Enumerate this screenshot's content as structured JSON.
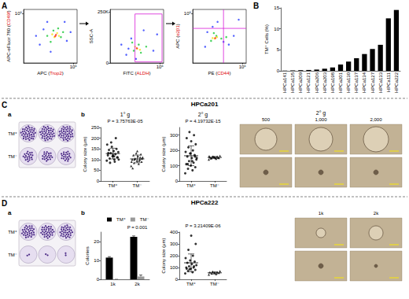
{
  "chart_data": [
    {
      "panel": "A",
      "type": "scatter",
      "x_label": "APC (Trop2)",
      "y_label": "APC-eFluor 780 (CD49f)",
      "log": true,
      "xlim": [
        10,
        200000
      ],
      "ylim": [
        10,
        200000
      ],
      "xticks": [
        {
          "value": 100000,
          "label": "10⁵"
        }
      ],
      "yticks": [
        {
          "value": 100000,
          "label": "10⁵"
        }
      ],
      "grid": false,
      "series": [
        {
          "color": "#2b3cff",
          "points": [
            [
              200,
              300
            ],
            [
              800,
              20000
            ],
            [
              30000,
              600
            ],
            [
              60000,
              3000
            ],
            [
              1500,
              80
            ],
            [
              400,
              5000
            ],
            [
              20000,
              20000
            ],
            [
              100,
              1500
            ]
          ]
        },
        {
          "color": "#19c837",
          "points": [
            [
              1500,
              500
            ],
            [
              2500,
              4000
            ],
            [
              10000,
              1200
            ],
            [
              6000,
              6000
            ],
            [
              800,
              1500
            ],
            [
              15000,
              3000
            ]
          ]
        },
        {
          "color": "#f3e21b",
          "points": [
            [
              3000,
              1200
            ],
            [
              5000,
              2500
            ],
            [
              2000,
              2000
            ],
            [
              7000,
              1500
            ]
          ]
        },
        {
          "color": "#ff2a1a",
          "points": [
            [
              4000,
              1800
            ],
            [
              3500,
              1400
            ]
          ]
        }
      ]
    },
    {
      "type": "scatter",
      "x_label": "FITC (ALDH)",
      "y_label": "SSC-A",
      "log": "x",
      "xlim": [
        10,
        200000
      ],
      "ylim": [
        0,
        262144
      ],
      "xticks": [
        {
          "value": 100000,
          "label": "10⁵"
        }
      ],
      "yticks": [
        0,
        {
          "value": 250000,
          "label": "250K"
        }
      ],
      "grid": false,
      "gate": {
        "x": [
          1000,
          150000
        ],
        "y": [
          5000,
          240000
        ],
        "color": "#d81bd8"
      },
      "series": [
        {
          "color": "#2b3cff",
          "points": [
            [
              200,
              40000
            ],
            [
              500,
              120000
            ],
            [
              30000,
              60000
            ],
            [
              80,
              90000
            ],
            [
              5000,
              160000
            ],
            [
              60000,
              140000
            ],
            [
              1200,
              20000
            ],
            [
              300,
              70000
            ]
          ]
        },
        {
          "color": "#19c837",
          "points": [
            [
              800,
              60000
            ],
            [
              2000,
              90000
            ],
            [
              3000,
              50000
            ],
            [
              600,
              100000
            ],
            [
              8000,
              80000
            ]
          ]
        },
        {
          "color": "#f3e21b",
          "points": [
            [
              1500,
              70000
            ],
            [
              1000,
              80000
            ],
            [
              2500,
              65000
            ]
          ]
        },
        {
          "color": "#ff2a1a",
          "points": [
            [
              1400,
              72000
            ]
          ]
        }
      ]
    },
    {
      "type": "scatter",
      "x_label": "PE (CD44)",
      "y_label": "APC (α2β1)",
      "log": true,
      "xlim": [
        10,
        200000
      ],
      "ylim": [
        10,
        200000
      ],
      "xticks": [
        {
          "value": 100000,
          "label": "10⁵"
        }
      ],
      "yticks": [
        {
          "value": 100000,
          "label": "10⁵"
        }
      ],
      "grid": false,
      "quadrant": {
        "x": 3000,
        "y": 6000,
        "color": "#d81bd8"
      },
      "series": [
        {
          "color": "#2b3cff",
          "points": [
            [
              100,
              200
            ],
            [
              3000,
              500
            ],
            [
              20000,
              1500
            ],
            [
              400,
              8000
            ],
            [
              50000,
              30000
            ],
            [
              150,
              3000
            ],
            [
              8000,
              300
            ],
            [
              1000,
              20000
            ]
          ]
        },
        {
          "color": "#19c837",
          "points": [
            [
              300,
              600
            ],
            [
              800,
              1500
            ],
            [
              2000,
              900
            ],
            [
              500,
              2500
            ],
            [
              5000,
              1200
            ]
          ]
        },
        {
          "color": "#f3e21b",
          "points": [
            [
              600,
              900
            ],
            [
              900,
              1200
            ],
            [
              400,
              1000
            ]
          ]
        },
        {
          "color": "#ff2a1a",
          "points": [
            [
              650,
              1000
            ]
          ]
        }
      ]
    },
    {
      "panel": "B",
      "type": "bar",
      "y_label": "TM⁺ Cells (%)",
      "categories": [
        "HPCa141",
        "HPCa135",
        "HPCa209",
        "HPCa121",
        "HPCa206",
        "HPCa203",
        "HPCa198",
        "HPCa201",
        "HPCa130",
        "HPCa137",
        "HPCa134",
        "HPCa127",
        "HPCa133",
        "HPCa111",
        "HPCa222"
      ],
      "values": [
        0.05,
        0.1,
        0.15,
        0.2,
        0.3,
        0.5,
        0.8,
        1.5,
        2.2,
        3.0,
        4.0,
        5.2,
        6.2,
        12.5,
        14.5
      ],
      "color": "#000000",
      "ylim": [
        0,
        15
      ],
      "yticks": [
        0,
        5,
        10,
        15
      ],
      "grid": false
    },
    {
      "type": "scatter",
      "title": "1° g",
      "annotation": "P = 3.75763E-05",
      "y_label": "Colony size (μm)",
      "categories": [
        "TM⁺",
        "TM⁻"
      ],
      "ylim": [
        0,
        250
      ],
      "yticks": [
        0,
        50,
        100,
        150,
        200,
        250
      ],
      "grid": false,
      "groups": [
        {
          "marker": "circle",
          "color": "#000000",
          "values": [
            95,
            100,
            105,
            110,
            115,
            120,
            125,
            130,
            135,
            140,
            145,
            150,
            160,
            170,
            90,
            85,
            110,
            120,
            130,
            200,
            180,
            100,
            115
          ],
          "mean": 128,
          "error": 25
        },
        {
          "marker": "triangle",
          "color": "#000000",
          "values": [
            70,
            80,
            85,
            90,
            95,
            100,
            100,
            105,
            110,
            115,
            120,
            125,
            130,
            90,
            95,
            100,
            105,
            140,
            60,
            110
          ],
          "mean": 103,
          "error": 18
        }
      ]
    },
    {
      "type": "scatter",
      "title": "2° g",
      "annotation": "P = 4.19732E-15",
      "y_label": "Colony size (μm)",
      "categories": [
        "TM⁺",
        "TM⁻"
      ],
      "ylim": [
        0,
        350
      ],
      "yticks": [
        0,
        100,
        200,
        300
      ],
      "grid": false,
      "groups": [
        {
          "marker": "circle",
          "color": "#000000",
          "values": [
            50,
            70,
            80,
            90,
            100,
            110,
            120,
            130,
            140,
            150,
            160,
            170,
            180,
            190,
            200,
            220,
            240,
            260,
            280,
            300,
            320,
            150,
            130,
            110,
            160,
            180
          ],
          "mean": 165,
          "error": 65
        },
        {
          "marker": "triangle",
          "color": "#000000",
          "values": [
            140,
            145,
            150,
            150,
            155,
            155,
            160,
            160,
            165,
            150,
            148,
            152,
            158,
            162
          ],
          "mean": 154,
          "error": 6
        }
      ]
    },
    {
      "type": "bar",
      "y_label": "Colonies",
      "annotation": "P = 0.001",
      "legend": "top",
      "categories": [
        "1k",
        "2k"
      ],
      "ylim": [
        0,
        25
      ],
      "yticks": [
        0,
        10,
        20
      ],
      "grid": false,
      "series": [
        {
          "name": "TM⁺",
          "color": "#000000",
          "values": [
            11.5,
            22.5
          ],
          "errors": [
            0.5,
            0.5
          ]
        },
        {
          "name": "TM⁻",
          "color": "#999999",
          "values": [
            0,
            1.5
          ],
          "errors": [
            0,
            0.8
          ]
        }
      ]
    },
    {
      "type": "scatter",
      "annotation": "P = 3.21409E-06",
      "y_label": "Colony size (μm)",
      "categories": [
        "TM⁺",
        "TM⁻"
      ],
      "ylim": [
        0,
        400
      ],
      "yticks": [
        0,
        100,
        200,
        300,
        400
      ],
      "grid": false,
      "groups": [
        {
          "marker": "circle",
          "color": "#000000",
          "values": [
            50,
            60,
            70,
            80,
            90,
            100,
            100,
            110,
            120,
            130,
            140,
            150,
            160,
            180,
            200,
            250,
            300,
            370,
            90,
            110,
            85
          ],
          "mean": 140,
          "error": 75
        },
        {
          "marker": "triangle",
          "color": "#000000",
          "values": [
            40,
            45,
            50,
            55,
            55,
            60,
            60,
            65,
            70
          ],
          "mean": 55,
          "error": 9
        }
      ]
    }
  ],
  "sections": [
    {
      "letter": "C",
      "title": "HPCa201",
      "sub_letters": [
        "a",
        "b"
      ],
      "plate": {
        "rows": [
          "TM⁺",
          "TM⁻"
        ]
      },
      "micrographs": {
        "title": "2° g",
        "columns": [
          "500",
          "1,000",
          "2,000"
        ]
      }
    },
    {
      "letter": "D",
      "title": "HPCa222",
      "sub_letters": [
        "a",
        "b"
      ],
      "plate": {
        "rows": [
          "TM⁺",
          "TM⁻"
        ]
      },
      "micrographs": {
        "columns": [
          "1k",
          "2k"
        ]
      }
    }
  ]
}
